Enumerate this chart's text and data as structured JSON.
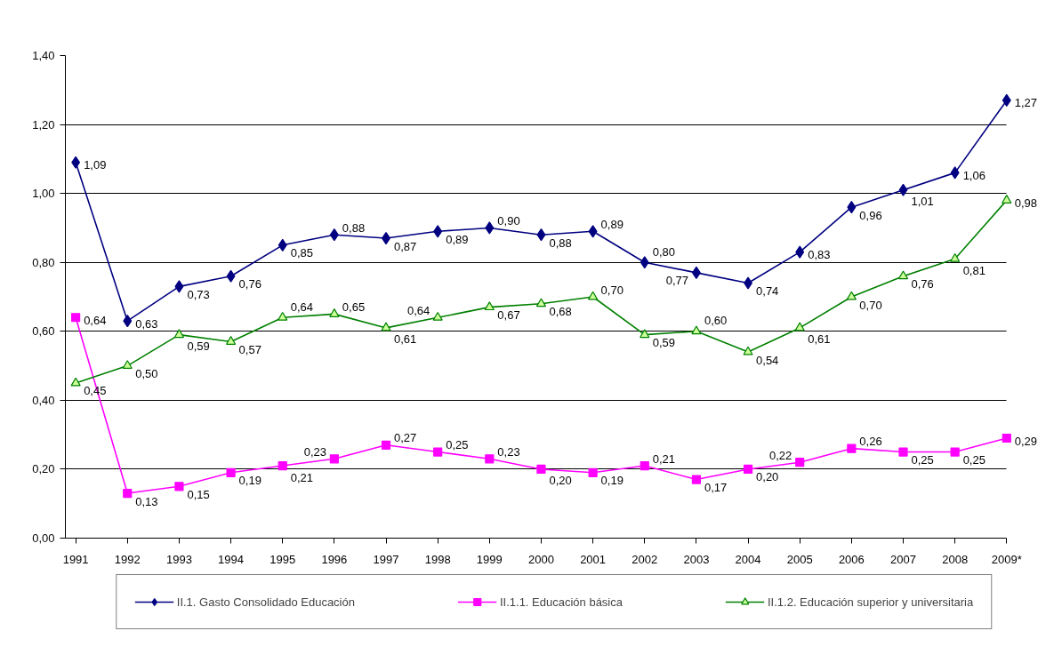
{
  "chart_data": {
    "type": "line",
    "categories": [
      "1991",
      "1992",
      "1993",
      "1994",
      "1995",
      "1996",
      "1997",
      "1998",
      "1999",
      "2000",
      "2001",
      "2002",
      "2003",
      "2004",
      "2005",
      "2006",
      "2007",
      "2008",
      "2009*"
    ],
    "ylim": [
      0,
      1.4
    ],
    "yticks": [
      {
        "value": 0,
        "label": "0,00"
      },
      {
        "value": 0.2,
        "label": "0,20"
      },
      {
        "value": 0.4,
        "label": "0,40"
      },
      {
        "value": 0.6,
        "label": "0,60"
      },
      {
        "value": 0.8,
        "label": "0,80"
      },
      {
        "value": 1.0,
        "label": "1,00"
      },
      {
        "value": 1.2,
        "label": "1,20"
      },
      {
        "value": 1.4,
        "label": "1,40"
      }
    ],
    "grid": "y",
    "legend": "bottom",
    "line_style": "solid",
    "series": [
      {
        "name": "II.1. Gasto Consolidado Educación",
        "color": "#000080",
        "marker": "diamond",
        "values": [
          1.09,
          0.63,
          0.73,
          0.76,
          0.85,
          0.88,
          0.87,
          0.89,
          0.9,
          0.88,
          0.89,
          0.8,
          0.77,
          0.74,
          0.83,
          0.96,
          1.01,
          1.06,
          1.27
        ],
        "value_labels": [
          "1,09",
          "0,63",
          "0,73",
          "0,76",
          "0,85",
          "0,88",
          "0,87",
          "0,89",
          "0,90",
          "0,88",
          "0,89",
          "0,80",
          "0,77",
          "0,74",
          "0,83",
          "0,96",
          "1,01",
          "1,06",
          "1,27"
        ]
      },
      {
        "name": "II.1.1. Educación básica",
        "color": "#ff00ff",
        "marker": "square",
        "values": [
          0.64,
          0.13,
          0.15,
          0.19,
          0.21,
          0.23,
          0.27,
          0.25,
          0.23,
          0.2,
          0.19,
          0.21,
          0.17,
          0.2,
          0.22,
          0.26,
          0.25,
          0.25,
          0.29
        ],
        "value_labels": [
          "0,64",
          "0,13",
          "0,15",
          "0,19",
          "0,21",
          "0,23",
          "0,27",
          "0,25",
          "0,23",
          "0,20",
          "0,19",
          "0,21",
          "0,17",
          "0,20",
          "0,22",
          "0,26",
          "0,25",
          "0,25",
          "0,29"
        ]
      },
      {
        "name": "II.1.2. Educación superior y universitaria",
        "color": "#008000",
        "marker": "triangle",
        "values": [
          0.45,
          0.5,
          0.59,
          0.57,
          0.64,
          0.65,
          0.61,
          0.64,
          0.67,
          0.68,
          0.7,
          0.59,
          0.6,
          0.54,
          0.61,
          0.7,
          0.76,
          0.81,
          0.98
        ],
        "value_labels": [
          "0,45",
          "0,50",
          "0,59",
          "0,57",
          "0,64",
          "0,65",
          "0,61",
          "0,64",
          "0,67",
          "0,68",
          "0,70",
          "0,59",
          "0,60",
          "0,54",
          "0,61",
          "0,70",
          "0,76",
          "0,81",
          "0,98"
        ]
      }
    ]
  }
}
